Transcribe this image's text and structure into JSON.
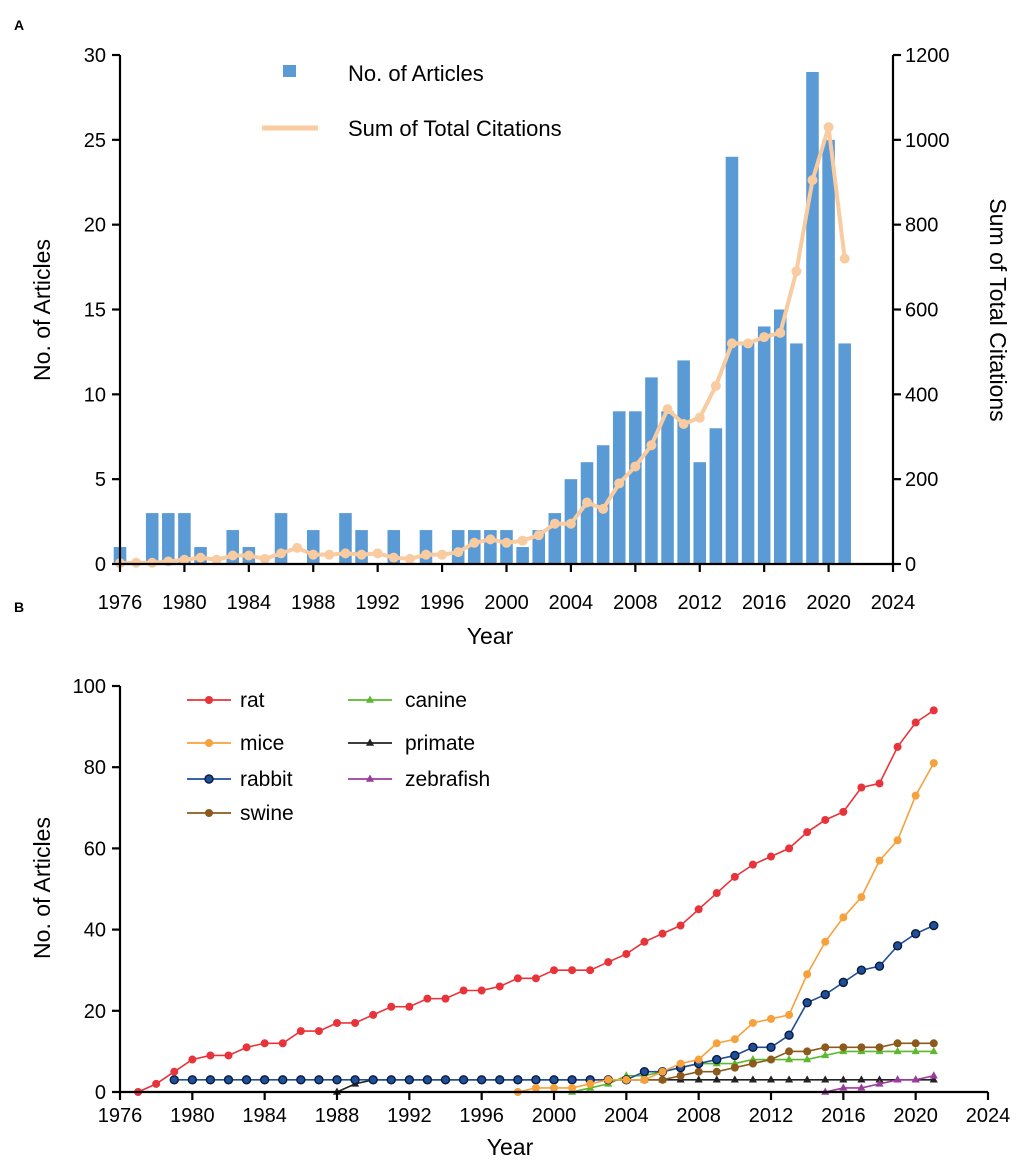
{
  "chart_data": [
    {
      "panel": "A",
      "type": "bar+line",
      "xlabel": "Year",
      "ylabel": "No. of Articles",
      "y2label": "Sum of Total Citations",
      "xlim": [
        1976,
        2024
      ],
      "ylim": [
        0,
        30
      ],
      "y2lim": [
        0,
        1200
      ],
      "xticks": [
        1976,
        1980,
        1984,
        1988,
        1992,
        1996,
        2000,
        2004,
        2008,
        2012,
        2016,
        2020,
        2024
      ],
      "yticks": [
        0,
        5,
        10,
        15,
        20,
        25,
        30
      ],
      "y2ticks": [
        0,
        200,
        400,
        600,
        800,
        1000,
        1200
      ],
      "legend": {
        "bar_label": "No. of Articles",
        "line_label": "Sum of Total Citations",
        "placement": "top-left"
      },
      "colors": {
        "bar": "#5b9bd5",
        "line": "#f8cca0"
      },
      "years": [
        1976,
        1977,
        1978,
        1979,
        1980,
        1981,
        1982,
        1983,
        1984,
        1985,
        1986,
        1987,
        1988,
        1989,
        1990,
        1991,
        1992,
        1993,
        1994,
        1995,
        1996,
        1997,
        1998,
        1999,
        2000,
        2001,
        2002,
        2003,
        2004,
        2005,
        2006,
        2007,
        2008,
        2009,
        2010,
        2011,
        2012,
        2013,
        2014,
        2015,
        2016,
        2017,
        2018,
        2019,
        2020,
        2021
      ],
      "articles": [
        1,
        0,
        3,
        3,
        3,
        1,
        0,
        2,
        1,
        0,
        3,
        0,
        2,
        0,
        3,
        2,
        0,
        2,
        0,
        2,
        0,
        2,
        2,
        2,
        2,
        1,
        2,
        3,
        5,
        6,
        7,
        9,
        9,
        11,
        9,
        12,
        6,
        8,
        24,
        13,
        14,
        15,
        13,
        29,
        25,
        13
      ],
      "citations": [
        2,
        3,
        3,
        6,
        10,
        15,
        10,
        20,
        20,
        12,
        25,
        38,
        22,
        22,
        25,
        22,
        25,
        15,
        12,
        22,
        22,
        28,
        50,
        58,
        50,
        55,
        68,
        95,
        95,
        145,
        130,
        190,
        230,
        280,
        365,
        330,
        345,
        420,
        520,
        520,
        535,
        545,
        690,
        905,
        1030,
        720
      ]
    },
    {
      "panel": "B",
      "type": "line",
      "xlabel": "Year",
      "ylabel": "No. of Articles",
      "xlim": [
        1976,
        2024
      ],
      "ylim": [
        0,
        100
      ],
      "xticks": [
        1976,
        1980,
        1984,
        1988,
        1992,
        1996,
        2000,
        2004,
        2008,
        2012,
        2016,
        2020,
        2024
      ],
      "yticks": [
        0,
        20,
        40,
        60,
        80,
        100
      ],
      "legend_placement": "top-left",
      "series": [
        {
          "name": "rat",
          "color": "#e8333a",
          "marker": "circle",
          "years": [
            1977,
            1978,
            1979,
            1980,
            1981,
            1982,
            1983,
            1984,
            1985,
            1986,
            1987,
            1988,
            1989,
            1990,
            1991,
            1992,
            1993,
            1994,
            1995,
            1996,
            1997,
            1998,
            1999,
            2000,
            2001,
            2002,
            2003,
            2004,
            2005,
            2006,
            2007,
            2008,
            2009,
            2010,
            2011,
            2012,
            2013,
            2014,
            2015,
            2016,
            2017,
            2018,
            2019,
            2020,
            2021
          ],
          "values": [
            0,
            2,
            5,
            8,
            9,
            9,
            11,
            12,
            12,
            15,
            15,
            17,
            17,
            19,
            21,
            21,
            23,
            23,
            25,
            25,
            26,
            28,
            28,
            30,
            30,
            30,
            32,
            34,
            37,
            39,
            41,
            45,
            49,
            53,
            56,
            58,
            60,
            64,
            67,
            69,
            75,
            76,
            85,
            91,
            94
          ]
        },
        {
          "name": "mice",
          "color": "#f7a13c",
          "marker": "circle",
          "years": [
            1998,
            1999,
            2000,
            2001,
            2002,
            2003,
            2004,
            2005,
            2006,
            2007,
            2008,
            2009,
            2010,
            2011,
            2012,
            2013,
            2014,
            2015,
            2016,
            2017,
            2018,
            2019,
            2020,
            2021
          ],
          "values": [
            0,
            1,
            1,
            1,
            2,
            3,
            3,
            3,
            5,
            7,
            8,
            12,
            13,
            17,
            18,
            19,
            29,
            37,
            43,
            48,
            57,
            62,
            73,
            81
          ]
        },
        {
          "name": "rabbit",
          "color": "#1f4e9b",
          "marker": "circle-dark",
          "years": [
            1979,
            1980,
            1981,
            1982,
            1983,
            1984,
            1985,
            1986,
            1987,
            1988,
            1989,
            1990,
            1991,
            1992,
            1993,
            1994,
            1995,
            1996,
            1997,
            1998,
            1999,
            2000,
            2001,
            2002,
            2003,
            2004,
            2005,
            2006,
            2007,
            2008,
            2009,
            2010,
            2011,
            2012,
            2013,
            2014,
            2015,
            2016,
            2017,
            2018,
            2019,
            2020,
            2021
          ],
          "values": [
            3,
            3,
            3,
            3,
            3,
            3,
            3,
            3,
            3,
            3,
            3,
            3,
            3,
            3,
            3,
            3,
            3,
            3,
            3,
            3,
            3,
            3,
            3,
            3,
            3,
            3,
            5,
            5,
            6,
            7,
            8,
            9,
            11,
            11,
            14,
            22,
            24,
            27,
            30,
            31,
            36,
            39,
            41
          ]
        },
        {
          "name": "swine",
          "color": "#8b5a1c",
          "marker": "circle",
          "years": [
            2004,
            2005,
            2006,
            2007,
            2008,
            2009,
            2010,
            2011,
            2012,
            2013,
            2014,
            2015,
            2016,
            2017,
            2018,
            2019,
            2020,
            2021
          ],
          "values": [
            3,
            3,
            3,
            4,
            5,
            5,
            6,
            7,
            8,
            10,
            10,
            11,
            11,
            11,
            11,
            12,
            12,
            12
          ]
        },
        {
          "name": "canine",
          "color": "#5cb82e",
          "marker": "triangle",
          "years": [
            2001,
            2002,
            2003,
            2004,
            2005,
            2006,
            2007,
            2008,
            2009,
            2010,
            2011,
            2012,
            2013,
            2014,
            2015,
            2016,
            2017,
            2018,
            2019,
            2020,
            2021
          ],
          "values": [
            0,
            1,
            2,
            4,
            4,
            5,
            6,
            7,
            7,
            7,
            8,
            8,
            8,
            8,
            9,
            10,
            10,
            10,
            10,
            10,
            10
          ]
        },
        {
          "name": "primate",
          "color": "#222222",
          "marker": "triangle",
          "years": [
            1988,
            1989,
            1990,
            1991,
            1992,
            1993,
            1994,
            1995,
            1996,
            1997,
            1998,
            1999,
            2000,
            2001,
            2002,
            2003,
            2004,
            2005,
            2006,
            2007,
            2008,
            2009,
            2010,
            2011,
            2012,
            2013,
            2014,
            2015,
            2016,
            2017,
            2018,
            2019,
            2020,
            2021
          ],
          "values": [
            0,
            2,
            3,
            3,
            3,
            3,
            3,
            3,
            3,
            3,
            3,
            3,
            3,
            3,
            3,
            3,
            3,
            3,
            3,
            3,
            3,
            3,
            3,
            3,
            3,
            3,
            3,
            3,
            3,
            3,
            3,
            3,
            3,
            3
          ]
        },
        {
          "name": "zebrafish",
          "color": "#9b3b9b",
          "marker": "triangle",
          "years": [
            2015,
            2016,
            2017,
            2018,
            2019,
            2020,
            2021
          ],
          "values": [
            0,
            1,
            1,
            2,
            3,
            3,
            4
          ]
        }
      ]
    }
  ]
}
